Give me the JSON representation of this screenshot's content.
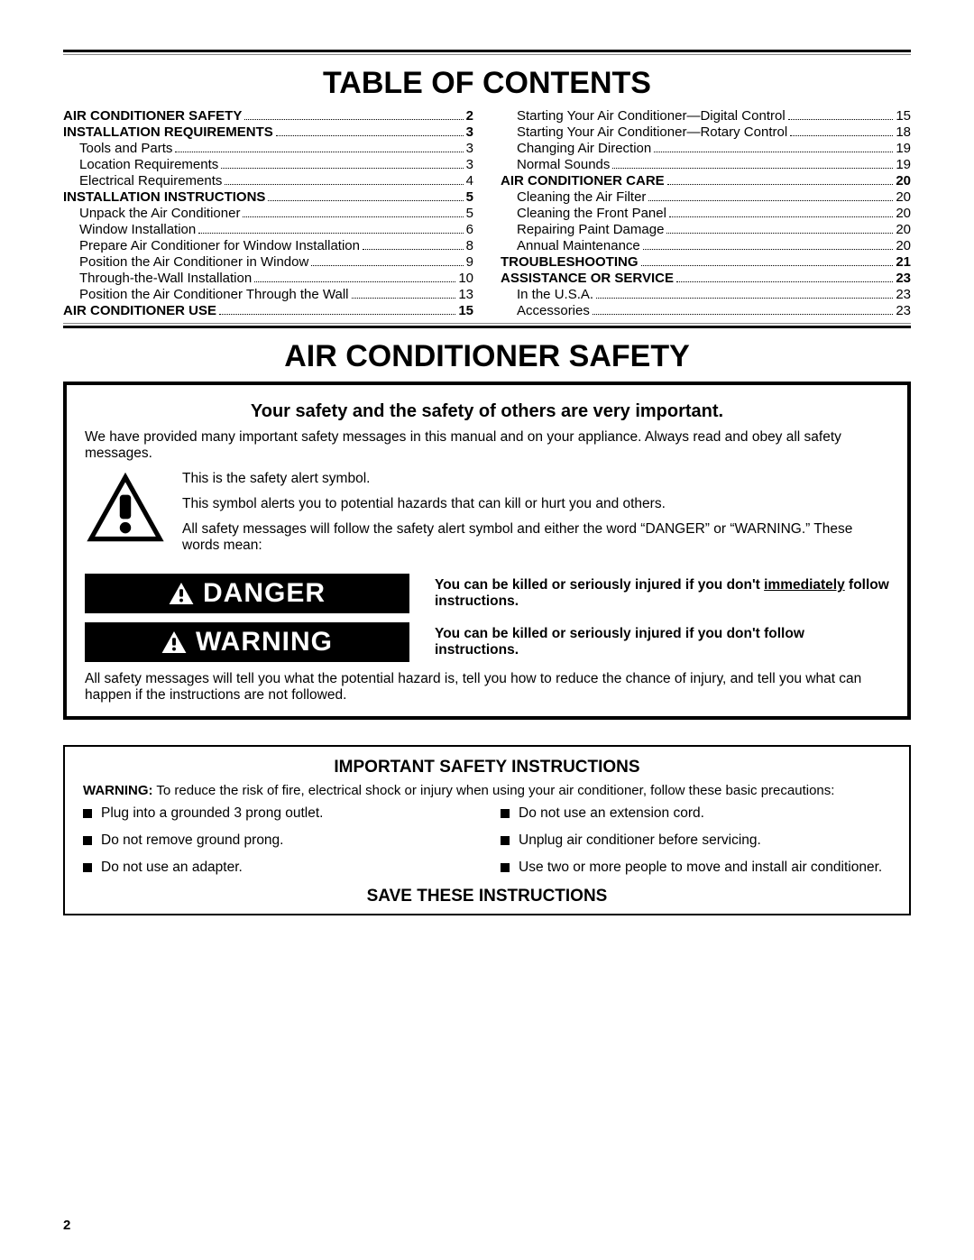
{
  "titles": {
    "toc": "TABLE OF CONTENTS",
    "safety": "AIR CONDITIONER SAFETY"
  },
  "toc": {
    "left": [
      {
        "label": "AIR CONDITIONER SAFETY",
        "page": "2",
        "bold": true
      },
      {
        "label": "INSTALLATION REQUIREMENTS",
        "page": "3",
        "bold": true
      },
      {
        "label": "Tools and Parts",
        "page": "3"
      },
      {
        "label": "Location Requirements",
        "page": "3"
      },
      {
        "label": "Electrical Requirements",
        "page": "4"
      },
      {
        "label": "INSTALLATION INSTRUCTIONS",
        "page": "5",
        "bold": true
      },
      {
        "label": "Unpack the Air Conditioner",
        "page": "5"
      },
      {
        "label": "Window Installation",
        "page": "6"
      },
      {
        "label": "Prepare Air Conditioner for Window Installation",
        "page": "8"
      },
      {
        "label": "Position the Air Conditioner in Window",
        "page": "9"
      },
      {
        "label": "Through-the-Wall Installation",
        "page": "10"
      },
      {
        "label": "Position the Air Conditioner Through the Wall",
        "page": "13"
      },
      {
        "label": "AIR CONDITIONER USE",
        "page": "15",
        "bold": true
      }
    ],
    "right": [
      {
        "label": "Starting Your Air Conditioner—Digital Control",
        "page": "15"
      },
      {
        "label": "Starting Your Air Conditioner—Rotary Control",
        "page": "18"
      },
      {
        "label": "Changing Air Direction",
        "page": "19"
      },
      {
        "label": "Normal Sounds",
        "page": "19"
      },
      {
        "label": "AIR CONDITIONER CARE",
        "page": "20",
        "bold": true
      },
      {
        "label": "Cleaning the Air Filter",
        "page": "20"
      },
      {
        "label": "Cleaning the Front Panel",
        "page": "20"
      },
      {
        "label": "Repairing Paint Damage",
        "page": "20"
      },
      {
        "label": "Annual Maintenance",
        "page": "20"
      },
      {
        "label": "TROUBLESHOOTING",
        "page": "21",
        "bold": true
      },
      {
        "label": "ASSISTANCE OR SERVICE",
        "page": "23",
        "bold": true
      },
      {
        "label": "In the U.S.A.",
        "page": "23"
      },
      {
        "label": "Accessories",
        "page": "23"
      }
    ]
  },
  "safety_box": {
    "heading": "Your safety and the safety of others are very important.",
    "intro": "We have provided many important safety messages in this manual and on your appliance. Always read and obey all safety messages.",
    "alert1": "This is the safety alert symbol.",
    "alert2": "This symbol alerts you to potential hazards that can kill or hurt you and others.",
    "alert3": "All safety messages will follow the safety alert symbol and either the word “DANGER” or “WARNING.” These words mean:",
    "danger_label": "DANGER",
    "danger_desc_pre": "You can be killed or seriously injured if you don't ",
    "danger_desc_ul": "immediately",
    "danger_desc_post": " follow instructions.",
    "warning_label": "WARNING",
    "warning_desc": "You can be killed or seriously injured if you don't follow instructions.",
    "outro": "All safety messages will tell you what the potential hazard is, tell you how to reduce the chance of injury, and tell you what can happen if the instructions are not followed."
  },
  "instr_box": {
    "title": "IMPORTANT SAFETY INSTRUCTIONS",
    "warn_bold": "WARNING:",
    "warn_text": " To reduce the risk of fire, electrical shock or injury when using your air conditioner, follow these basic precautions:",
    "left": [
      "Plug into a grounded 3 prong outlet.",
      "Do not remove ground prong.",
      "Do not use an adapter."
    ],
    "right": [
      "Do not use an extension cord.",
      "Unplug air conditioner before servicing.",
      "Use two or more people to move and install air conditioner."
    ],
    "save": "SAVE THESE INSTRUCTIONS"
  },
  "page_number": "2"
}
